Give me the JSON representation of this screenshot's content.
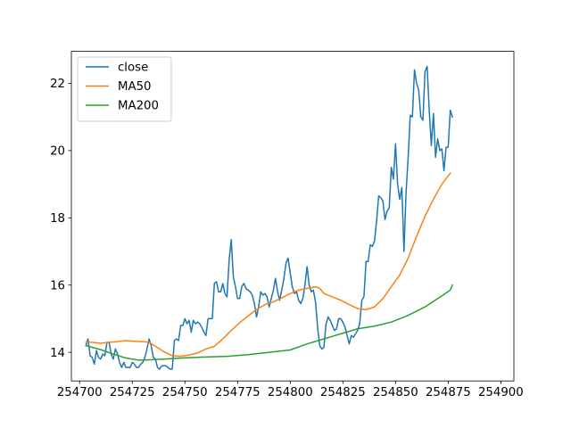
{
  "chart_data": {
    "type": "line",
    "xlim": [
      254696.1,
      254906.2
    ],
    "ylim": [
      13.15,
      22.95
    ],
    "xticks": [
      254700,
      254725,
      254750,
      254775,
      254800,
      254825,
      254850,
      254875,
      254900
    ],
    "yticks": [
      14,
      16,
      18,
      20,
      22
    ],
    "xtick_labels": [
      "254700",
      "254725",
      "254750",
      "254775",
      "254800",
      "254825",
      "254850",
      "254875",
      "254900"
    ],
    "ytick_labels": [
      "14",
      "16",
      "18",
      "20",
      "22"
    ],
    "legend": {
      "placement": "top-left"
    },
    "series": [
      {
        "name": "close",
        "color": "#1f77b4",
        "points": [
          [
            254703,
            14.2
          ],
          [
            254704,
            14.4
          ],
          [
            254705,
            13.9
          ],
          [
            254706,
            13.85
          ],
          [
            254707,
            13.65
          ],
          [
            254708,
            14.05
          ],
          [
            254709,
            13.85
          ],
          [
            254710,
            13.8
          ],
          [
            254711,
            13.95
          ],
          [
            254712,
            13.9
          ],
          [
            254713,
            14.3
          ],
          [
            254714,
            14.3
          ],
          [
            254715,
            13.95
          ],
          [
            254716,
            13.8
          ],
          [
            254717,
            14.1
          ],
          [
            254718,
            13.95
          ],
          [
            254719,
            13.7
          ],
          [
            254720,
            13.55
          ],
          [
            254721,
            13.7
          ],
          [
            254722,
            13.55
          ],
          [
            254723,
            13.55
          ],
          [
            254724,
            13.55
          ],
          [
            254725,
            13.7
          ],
          [
            254726,
            13.65
          ],
          [
            254727,
            13.55
          ],
          [
            254728,
            13.55
          ],
          [
            254729,
            13.65
          ],
          [
            254730,
            13.7
          ],
          [
            254731,
            13.85
          ],
          [
            254732,
            14.1
          ],
          [
            254733,
            14.4
          ],
          [
            254734,
            14.2
          ],
          [
            254735,
            13.85
          ],
          [
            254736,
            13.8
          ],
          [
            254737,
            13.55
          ],
          [
            254738,
            13.5
          ],
          [
            254739,
            13.6
          ],
          [
            254740,
            13.6
          ],
          [
            254741,
            13.6
          ],
          [
            254742,
            13.55
          ],
          [
            254743,
            13.5
          ],
          [
            254744,
            13.5
          ],
          [
            254745,
            14.35
          ],
          [
            254746,
            14.4
          ],
          [
            254747,
            14.35
          ],
          [
            254748,
            14.8
          ],
          [
            254749,
            14.8
          ],
          [
            254750,
            15.0
          ],
          [
            254751,
            14.85
          ],
          [
            254752,
            14.95
          ],
          [
            254753,
            14.6
          ],
          [
            254754,
            14.95
          ],
          [
            254755,
            14.85
          ],
          [
            254756,
            14.9
          ],
          [
            254757,
            14.85
          ],
          [
            254758,
            14.75
          ],
          [
            254759,
            14.6
          ],
          [
            254760,
            14.5
          ],
          [
            254761,
            15.0
          ],
          [
            254762,
            15.0
          ],
          [
            254763,
            15.0
          ],
          [
            254764,
            16.05
          ],
          [
            254765,
            16.1
          ],
          [
            254766,
            15.8
          ],
          [
            254767,
            15.8
          ],
          [
            254768,
            16.05
          ],
          [
            254769,
            15.75
          ],
          [
            254770,
            15.65
          ],
          [
            254771,
            16.75
          ],
          [
            254772,
            17.35
          ],
          [
            254773,
            16.25
          ],
          [
            254774,
            15.95
          ],
          [
            254775,
            15.6
          ],
          [
            254776,
            15.6
          ],
          [
            254777,
            15.95
          ],
          [
            254778,
            16.05
          ],
          [
            254779,
            15.9
          ],
          [
            254780,
            15.85
          ],
          [
            254781,
            15.8
          ],
          [
            254782,
            15.7
          ],
          [
            254783,
            15.45
          ],
          [
            254784,
            15.05
          ],
          [
            254785,
            15.35
          ],
          [
            254786,
            15.8
          ],
          [
            254787,
            15.7
          ],
          [
            254788,
            15.75
          ],
          [
            254789,
            15.65
          ],
          [
            254790,
            15.35
          ],
          [
            254791,
            15.6
          ],
          [
            254792,
            15.85
          ],
          [
            254793,
            16.2
          ],
          [
            254794,
            15.8
          ],
          [
            254795,
            15.55
          ],
          [
            254796,
            15.85
          ],
          [
            254797,
            16.2
          ],
          [
            254798,
            16.65
          ],
          [
            254799,
            16.8
          ],
          [
            254800,
            16.35
          ],
          [
            254801,
            15.95
          ],
          [
            254802,
            15.75
          ],
          [
            254803,
            15.8
          ],
          [
            254804,
            15.55
          ],
          [
            254805,
            15.45
          ],
          [
            254806,
            15.6
          ],
          [
            254807,
            16.0
          ],
          [
            254808,
            16.55
          ],
          [
            254809,
            16.0
          ],
          [
            254810,
            15.8
          ],
          [
            254811,
            15.85
          ],
          [
            254812,
            15.5
          ],
          [
            254813,
            14.75
          ],
          [
            254814,
            14.2
          ],
          [
            254815,
            14.1
          ],
          [
            254816,
            14.15
          ],
          [
            254817,
            14.85
          ],
          [
            254818,
            15.05
          ],
          [
            254819,
            14.95
          ],
          [
            254820,
            14.8
          ],
          [
            254821,
            14.65
          ],
          [
            254822,
            14.7
          ],
          [
            254823,
            15.0
          ],
          [
            254824,
            15.0
          ],
          [
            254825,
            14.9
          ],
          [
            254826,
            14.75
          ],
          [
            254827,
            14.5
          ],
          [
            254828,
            14.25
          ],
          [
            254829,
            14.5
          ],
          [
            254830,
            14.45
          ],
          [
            254831,
            14.55
          ],
          [
            254832,
            14.65
          ],
          [
            254833,
            14.85
          ],
          [
            254834,
            15.55
          ],
          [
            254835,
            15.65
          ],
          [
            254836,
            16.7
          ],
          [
            254837,
            16.7
          ],
          [
            254838,
            17.2
          ],
          [
            254839,
            17.15
          ],
          [
            254840,
            17.3
          ],
          [
            254841,
            17.9
          ],
          [
            254842,
            18.65
          ],
          [
            254843,
            18.6
          ],
          [
            254844,
            18.5
          ],
          [
            254845,
            17.95
          ],
          [
            254846,
            18.2
          ],
          [
            254847,
            18.3
          ],
          [
            254848,
            19.5
          ],
          [
            254849,
            19.15
          ],
          [
            254850,
            20.2
          ],
          [
            254851,
            19.0
          ],
          [
            254852,
            18.55
          ],
          [
            254853,
            18.9
          ],
          [
            254854,
            17.0
          ],
          [
            254855,
            18.75
          ],
          [
            254856,
            19.8
          ],
          [
            254857,
            21.05
          ],
          [
            254858,
            21.0
          ],
          [
            254859,
            22.4
          ],
          [
            254860,
            22.0
          ],
          [
            254861,
            21.8
          ],
          [
            254862,
            21.0
          ],
          [
            254863,
            20.9
          ],
          [
            254864,
            22.35
          ],
          [
            254865,
            22.5
          ],
          [
            254866,
            21.2
          ],
          [
            254867,
            20.15
          ],
          [
            254868,
            21.1
          ],
          [
            254869,
            19.8
          ],
          [
            254870,
            20.35
          ],
          [
            254871,
            20.0
          ],
          [
            254872,
            20.05
          ],
          [
            254873,
            19.4
          ],
          [
            254874,
            20.1
          ],
          [
            254875,
            20.1
          ],
          [
            254876,
            21.2
          ],
          [
            254877,
            21.0
          ]
        ]
      },
      {
        "name": "MA50",
        "color": "#ff7f0e",
        "points": [
          [
            254703,
            14.3
          ],
          [
            254706,
            14.3
          ],
          [
            254710,
            14.27
          ],
          [
            254714,
            14.3
          ],
          [
            254718,
            14.32
          ],
          [
            254722,
            14.35
          ],
          [
            254726,
            14.33
          ],
          [
            254730,
            14.32
          ],
          [
            254733,
            14.3
          ],
          [
            254736,
            14.18
          ],
          [
            254740,
            14.02
          ],
          [
            254744,
            13.9
          ],
          [
            254748,
            13.88
          ],
          [
            254752,
            13.92
          ],
          [
            254756,
            13.98
          ],
          [
            254760,
            14.1
          ],
          [
            254764,
            14.18
          ],
          [
            254768,
            14.4
          ],
          [
            254772,
            14.65
          ],
          [
            254776,
            14.88
          ],
          [
            254780,
            15.08
          ],
          [
            254784,
            15.27
          ],
          [
            254788,
            15.42
          ],
          [
            254792,
            15.5
          ],
          [
            254796,
            15.62
          ],
          [
            254800,
            15.75
          ],
          [
            254804,
            15.85
          ],
          [
            254808,
            15.9
          ],
          [
            254812,
            15.95
          ],
          [
            254814,
            15.9
          ],
          [
            254816,
            15.75
          ],
          [
            254820,
            15.65
          ],
          [
            254824,
            15.55
          ],
          [
            254828,
            15.42
          ],
          [
            254832,
            15.3
          ],
          [
            254836,
            15.27
          ],
          [
            254840,
            15.35
          ],
          [
            254844,
            15.6
          ],
          [
            254848,
            15.95
          ],
          [
            254852,
            16.3
          ],
          [
            254856,
            16.8
          ],
          [
            254860,
            17.45
          ],
          [
            254864,
            18.05
          ],
          [
            254868,
            18.55
          ],
          [
            254872,
            19.0
          ],
          [
            254876,
            19.33
          ]
        ]
      },
      {
        "name": "MA200",
        "color": "#2ca02c",
        "points": [
          [
            254703,
            14.2
          ],
          [
            254710,
            14.08
          ],
          [
            254716,
            13.95
          ],
          [
            254722,
            13.83
          ],
          [
            254728,
            13.77
          ],
          [
            254734,
            13.78
          ],
          [
            254740,
            13.8
          ],
          [
            254746,
            13.82
          ],
          [
            254752,
            13.84
          ],
          [
            254760,
            13.86
          ],
          [
            254770,
            13.88
          ],
          [
            254780,
            13.93
          ],
          [
            254790,
            14.0
          ],
          [
            254800,
            14.07
          ],
          [
            254808,
            14.25
          ],
          [
            254816,
            14.4
          ],
          [
            254824,
            14.55
          ],
          [
            254832,
            14.7
          ],
          [
            254840,
            14.78
          ],
          [
            254848,
            14.9
          ],
          [
            254856,
            15.1
          ],
          [
            254864,
            15.35
          ],
          [
            254872,
            15.68
          ],
          [
            254876,
            15.85
          ],
          [
            254877,
            16.0
          ]
        ]
      }
    ]
  }
}
